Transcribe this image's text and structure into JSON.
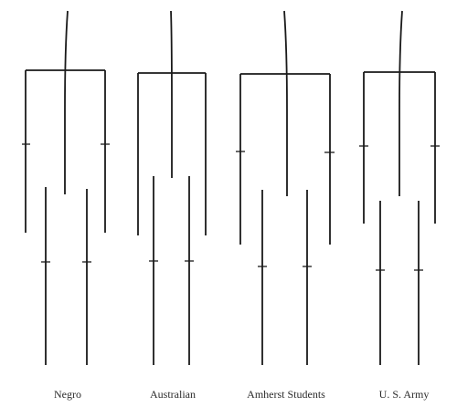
{
  "figures": [
    {
      "label": "Negro"
    },
    {
      "label": "Australian"
    },
    {
      "label": "Amherst Students"
    },
    {
      "label": "U. S. Army"
    }
  ]
}
